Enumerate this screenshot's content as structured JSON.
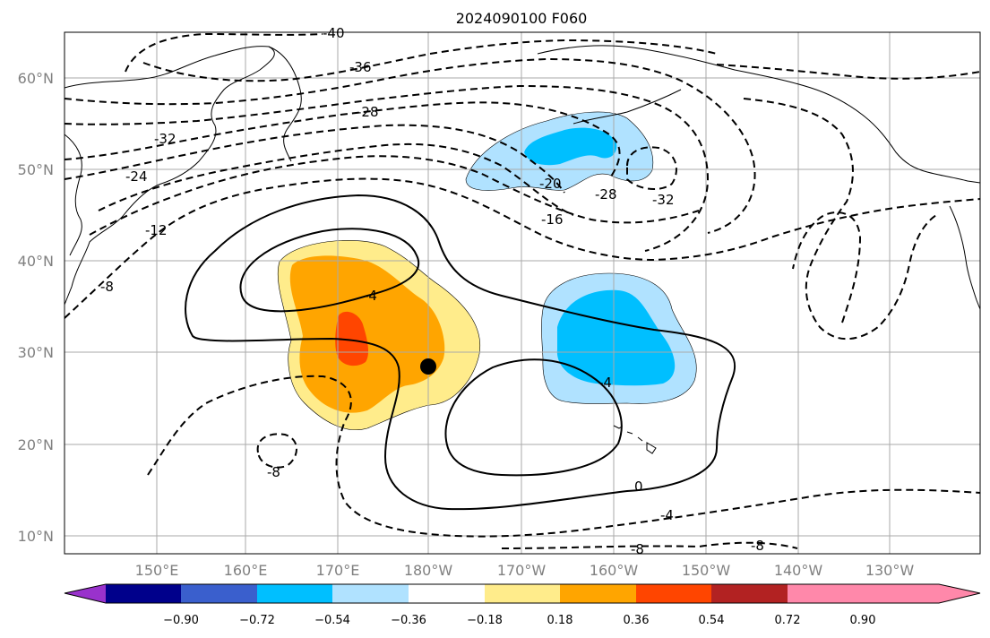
{
  "title": "2024090100 F060",
  "lat_labels": [
    "60°N",
    "50°N",
    "40°N",
    "30°N",
    "20°N",
    "10°N"
  ],
  "lon_labels": [
    "150°E",
    "160°E",
    "170°E",
    "180°W",
    "170°W",
    "160°W",
    "150°W",
    "140°W",
    "130°W"
  ],
  "colorbar": {
    "ticks": [
      "−0.90",
      "−0.72",
      "−0.54",
      "−0.36",
      "−0.18",
      "0.18",
      "0.36",
      "0.54",
      "0.72",
      "0.90"
    ],
    "colors": [
      "#9932CC",
      "#00008B",
      "#3A5FCD",
      "#00BFFF",
      "#B0E2FF",
      "#FFFFFF",
      "#FFEC8B",
      "#FFA500",
      "#FF4500",
      "#B22222",
      "#FF88AA"
    ]
  },
  "contour_labels": [
    "-40",
    "-36",
    "-28",
    "-32",
    "-24",
    "-12",
    "-8",
    "-20",
    "-16",
    "-28",
    "-32",
    "-4",
    "-4",
    "-8",
    "0",
    "-4",
    "-8",
    "-8"
  ],
  "marker": {
    "type": "black-dot",
    "lat": 28.5,
    "lon": -180
  },
  "colors": {
    "frame": "#000000",
    "grid": "#aaaaaa",
    "coast": "#000000"
  }
}
